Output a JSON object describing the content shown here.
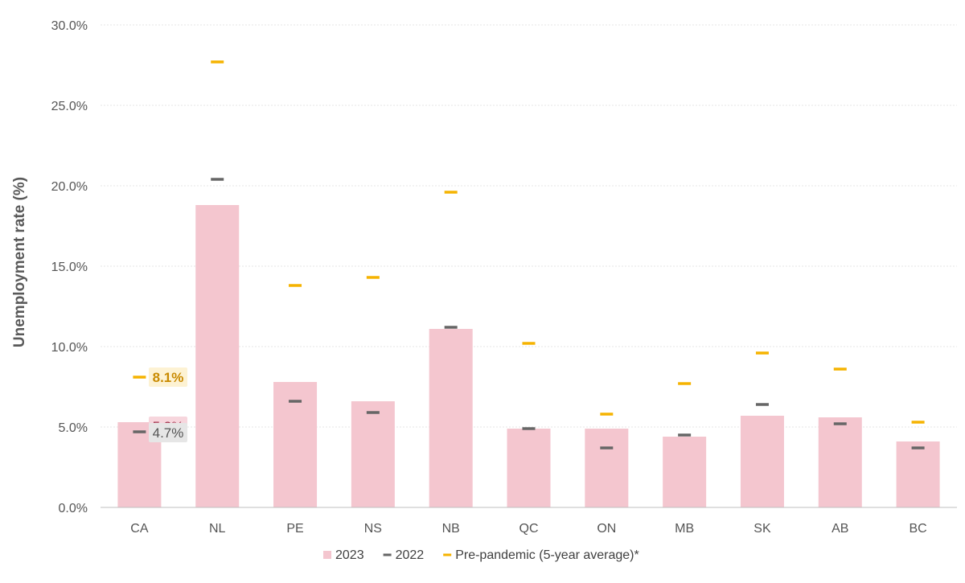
{
  "chart_data": {
    "type": "bar",
    "categories": [
      "CA",
      "NL",
      "PE",
      "NS",
      "NB",
      "QC",
      "ON",
      "MB",
      "SK",
      "AB",
      "BC"
    ],
    "series": [
      {
        "name": "2023",
        "kind": "bar",
        "color": "#f4c6cf",
        "values": [
          5.3,
          18.8,
          7.8,
          6.6,
          11.1,
          4.9,
          4.9,
          4.4,
          5.7,
          5.6,
          4.1
        ]
      },
      {
        "name": "2022",
        "kind": "marker",
        "color": "#666666",
        "values": [
          4.7,
          20.4,
          6.6,
          5.9,
          11.2,
          4.9,
          3.7,
          4.5,
          6.4,
          5.2,
          3.7
        ]
      },
      {
        "name": "Pre-pandemic (5-year average)*",
        "kind": "marker",
        "color": "#f5b301",
        "values": [
          8.1,
          27.7,
          13.8,
          14.3,
          19.6,
          10.2,
          5.8,
          7.7,
          9.6,
          8.6,
          5.3
        ]
      }
    ],
    "yticks": [
      "0.0%",
      "5.0%",
      "10.0%",
      "15.0%",
      "20.0%",
      "25.0%",
      "30.0%"
    ],
    "ylim": [
      0,
      30
    ],
    "ylabel": "Unemployment rate (%)",
    "xlabel": "",
    "grid": true,
    "legend_position": "bottom-center",
    "callouts": [
      {
        "text": "8.1%",
        "text_color": "#c98a00",
        "bg_color": "#fdf2d3",
        "bold": true
      },
      {
        "text": "5.3%",
        "text_color": "#a0304a",
        "bg_color": "#f7d6dd",
        "bold": false
      },
      {
        "text": "4.7%",
        "text_color": "#555555",
        "bg_color": "#e6e6e6",
        "bold": false
      }
    ]
  }
}
